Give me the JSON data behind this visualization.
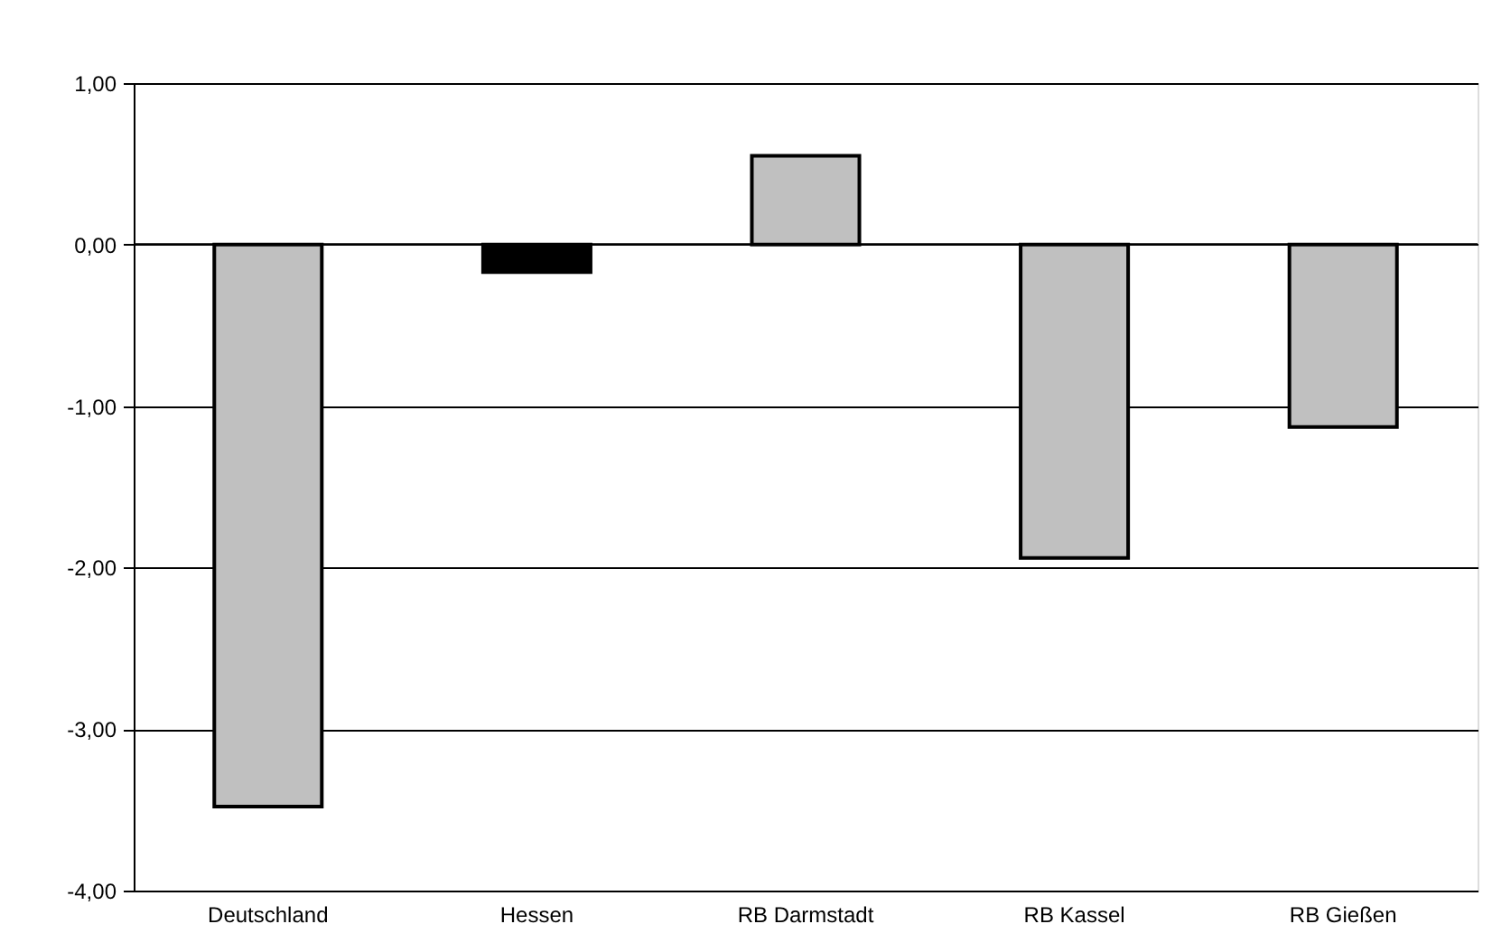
{
  "chart_data": {
    "type": "bar",
    "categories": [
      "Deutschland",
      "Hessen",
      "RB Darmstadt",
      "RB Kassel",
      "RB Gießen"
    ],
    "values": [
      -3.48,
      -0.17,
      0.55,
      -1.94,
      -1.13
    ],
    "colors": [
      "#c0c0c0",
      "#000000",
      "#c0c0c0",
      "#c0c0c0",
      "#c0c0c0"
    ],
    "ylim": [
      -4,
      1
    ],
    "yticks": [
      {
        "value": 1,
        "label": "1,00"
      },
      {
        "value": 0,
        "label": "0,00"
      },
      {
        "value": -1,
        "label": "-1,00"
      },
      {
        "value": -2,
        "label": "-2,00"
      },
      {
        "value": -3,
        "label": "-3,00"
      },
      {
        "value": -4,
        "label": "-4,00"
      }
    ],
    "grid": "y"
  }
}
